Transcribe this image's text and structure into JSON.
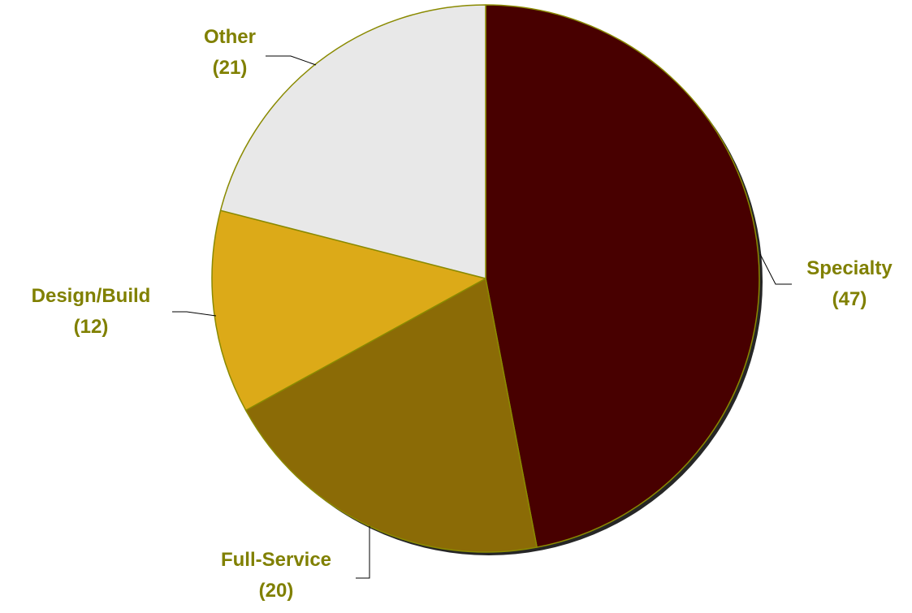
{
  "chart_data": {
    "type": "pie",
    "slices": [
      {
        "label": "Specialty",
        "value": 47,
        "value_text": "(47)",
        "color": "#480000"
      },
      {
        "label": "Full-Service",
        "value": 20,
        "value_text": "(20)",
        "color": "#8b6b06"
      },
      {
        "label": "Design/Build",
        "value": 12,
        "value_text": "(12)",
        "color": "#dcaa18"
      },
      {
        "label": "Other",
        "value": 21,
        "value_text": "(21)",
        "color": "#e8e8e8"
      }
    ],
    "start": "12 o'clock",
    "direction": "clockwise",
    "outline_color": "#8a8a00",
    "label_color": "#808000",
    "legend": "none"
  }
}
